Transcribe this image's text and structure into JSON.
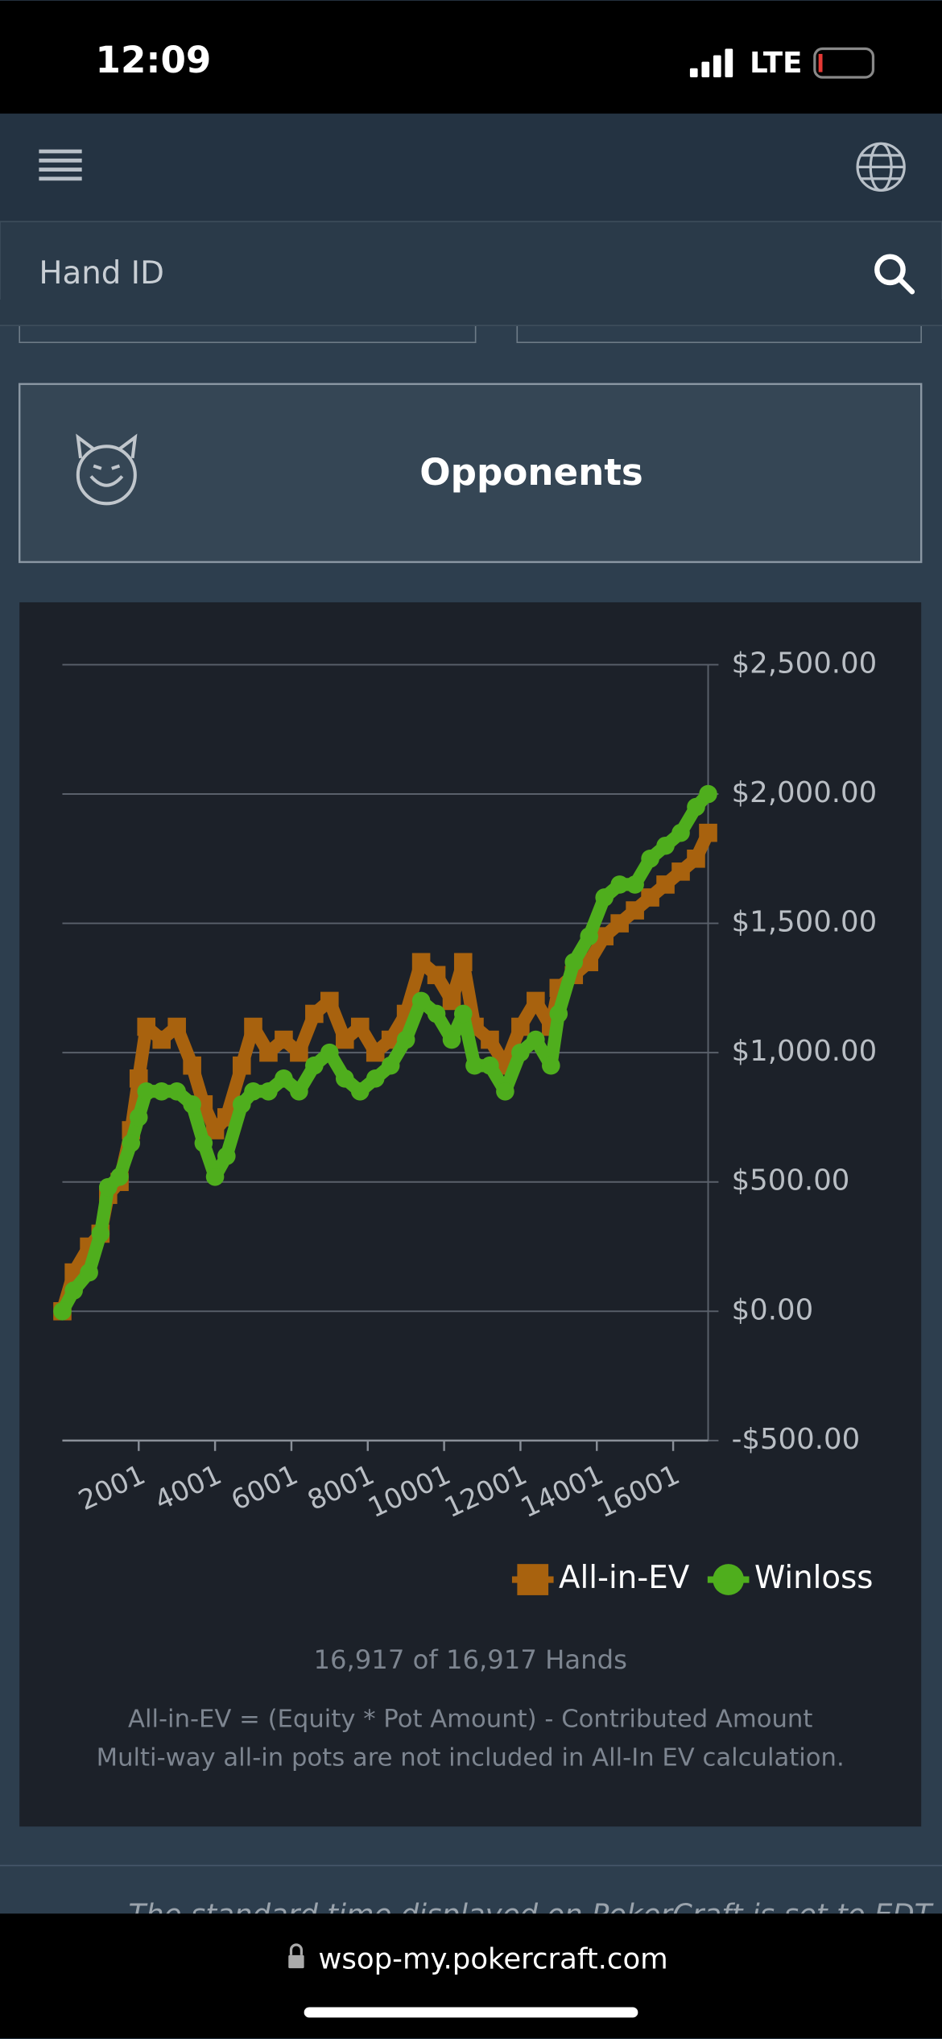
{
  "status_bar": {
    "time": "12:09",
    "network": "LTE"
  },
  "header": {
    "search_placeholder": "Hand ID"
  },
  "opponents_button": "Opponents",
  "chart_data": {
    "type": "line",
    "x": [
      1,
      300,
      700,
      1000,
      1200,
      1500,
      1800,
      2000,
      2200,
      2600,
      3000,
      3400,
      3700,
      4000,
      4300,
      4700,
      5000,
      5400,
      5800,
      6200,
      6600,
      7000,
      7400,
      7800,
      8200,
      8600,
      9000,
      9400,
      9800,
      10200,
      10500,
      10800,
      11200,
      11600,
      12000,
      12400,
      12800,
      13000,
      13400,
      13800,
      14200,
      14600,
      15000,
      15400,
      15800,
      16200,
      16600,
      16917
    ],
    "series": [
      {
        "name": "All-in-EV",
        "color": "#a8620e",
        "marker": "square",
        "values": [
          0,
          150,
          250,
          300,
          450,
          500,
          700,
          900,
          1100,
          1050,
          1100,
          950,
          800,
          700,
          750,
          950,
          1100,
          1000,
          1050,
          1000,
          1150,
          1200,
          1050,
          1100,
          1000,
          1050,
          1150,
          1350,
          1300,
          1200,
          1350,
          1100,
          1050,
          950,
          1100,
          1200,
          1100,
          1250,
          1300,
          1350,
          1450,
          1500,
          1550,
          1600,
          1650,
          1700,
          1750,
          1850
        ]
      },
      {
        "name": "Winloss",
        "color": "#4fae1d",
        "marker": "circle",
        "values": [
          0,
          80,
          150,
          300,
          480,
          520,
          650,
          750,
          850,
          850,
          850,
          800,
          650,
          520,
          600,
          800,
          850,
          850,
          900,
          850,
          950,
          1000,
          900,
          850,
          900,
          950,
          1050,
          1200,
          1150,
          1050,
          1150,
          950,
          950,
          850,
          1000,
          1050,
          950,
          1150,
          1350,
          1450,
          1600,
          1650,
          1650,
          1750,
          1800,
          1850,
          1950,
          2000
        ]
      }
    ],
    "xlim": [
      1,
      16917
    ],
    "xticks": [
      2001,
      4001,
      6001,
      8001,
      10001,
      12001,
      14001,
      16001
    ],
    "ylim": [
      -500,
      2500
    ],
    "yticks": [
      {
        "value": -500,
        "label": "-$500.00"
      },
      {
        "value": 0,
        "label": "$0.00"
      },
      {
        "value": 500,
        "label": "$500.00"
      },
      {
        "value": 1000,
        "label": "$1,000.00"
      },
      {
        "value": 1500,
        "label": "$1,500.00"
      },
      {
        "value": 2000,
        "label": "$2,000.00"
      },
      {
        "value": 2500,
        "label": "$2,500.00"
      }
    ],
    "grid": true,
    "legend": "bottom-right"
  },
  "hands_count": "16,917 of 16,917 Hands",
  "notes": [
    "All-in-EV = (Equity * Pot Amount) - Contributed Amount",
    "Multi-way all-in pots are not included in All-In EV calculation."
  ],
  "footer_text": "The standard time displayed on PokerCraft is set to EDT",
  "url": "wsop-my.pokercraft.com"
}
